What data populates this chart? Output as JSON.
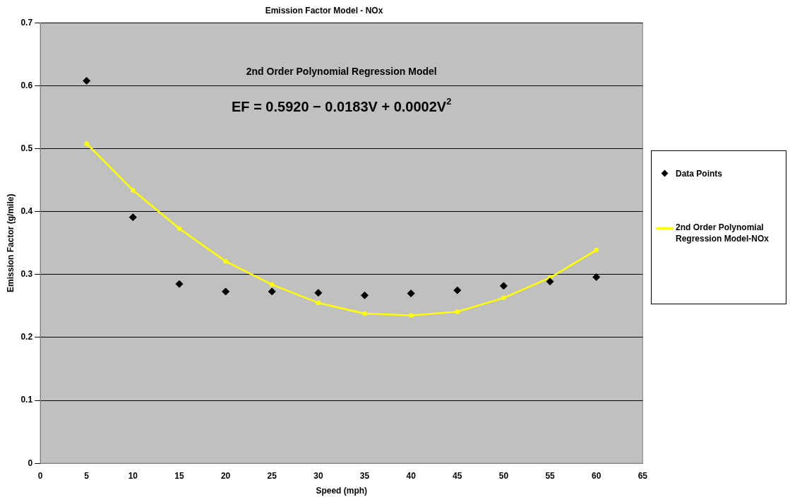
{
  "chart_data": {
    "type": "scatter",
    "title": "Emission Factor Model - NOx",
    "xlabel": "Speed (mph)",
    "ylabel": "Emission Factor (g/mile)",
    "annotations": [
      "2nd Order Polynomial Regression Model",
      "EF = 0.5920 − 0.0183V + 0.0002V$^{2}$"
    ],
    "x": [
      5,
      10,
      15,
      20,
      25,
      30,
      35,
      40,
      45,
      50,
      55,
      60
    ],
    "series": [
      {
        "name": "Data Points",
        "color": "#000000",
        "marker": "diamond",
        "values": [
          0.608,
          0.391,
          0.285,
          0.273,
          0.273,
          0.271,
          0.267,
          0.27,
          0.275,
          0.282,
          0.289,
          0.296
        ]
      },
      {
        "name": "2nd Order Polynomial Regression Model-NOx",
        "type": "line",
        "color": "#ffff00",
        "marker": "circle",
        "line_style": "solid",
        "values": [
          0.508,
          0.434,
          0.373,
          0.321,
          0.284,
          0.255,
          0.238,
          0.235,
          0.241,
          0.263,
          0.295,
          0.339
        ]
      }
    ],
    "xlim": [
      0,
      65
    ],
    "xticks": [
      0,
      5,
      10,
      15,
      20,
      25,
      30,
      35,
      40,
      45,
      50,
      55,
      60,
      65
    ],
    "ylim": [
      0,
      0.7
    ],
    "yticks": [
      0,
      0.1,
      0.2,
      0.3,
      0.4,
      0.5,
      0.6,
      0.7
    ],
    "grid": "y",
    "legend": "right"
  }
}
